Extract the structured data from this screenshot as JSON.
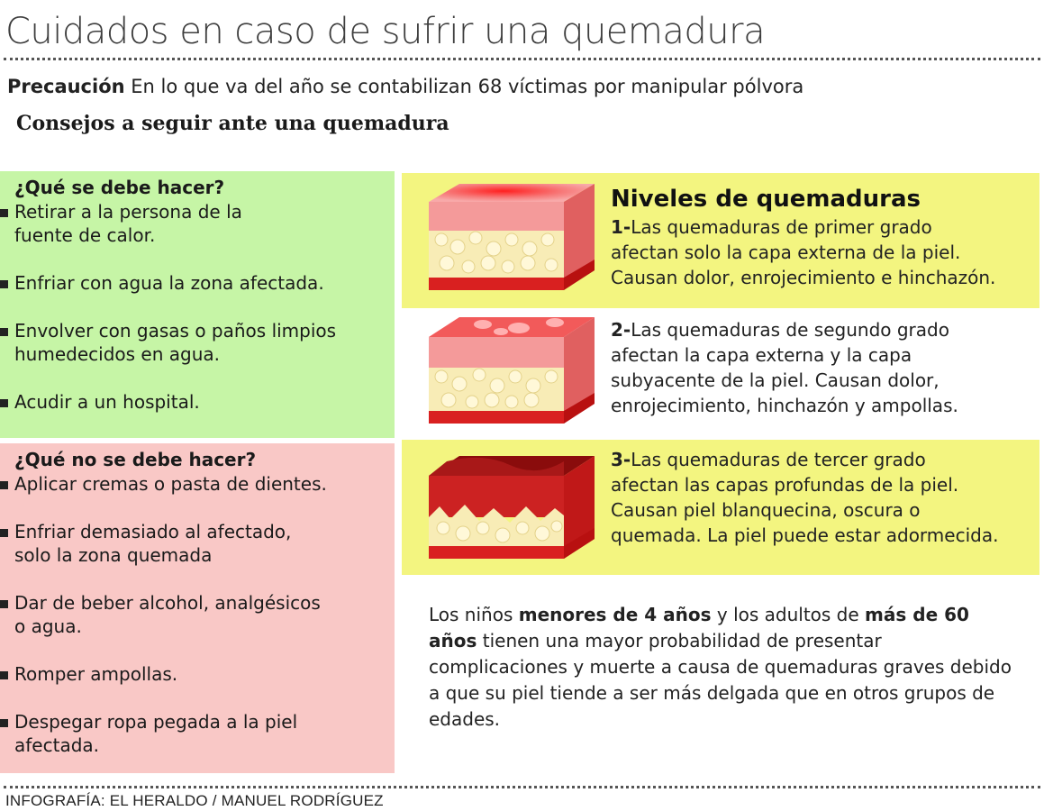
{
  "title": "Cuidados en caso de sufrir una quemadura",
  "precaution": {
    "label": "Precaución",
    "text": "En lo que va del año se contabilizan 68 víctimas por manipular pólvora"
  },
  "subtitle": "Consejos a seguir ante una quemadura",
  "do": {
    "heading": "¿Qué se debe hacer?",
    "items": [
      [
        "Retirar a la persona de la",
        "fuente de calor."
      ],
      [
        "Enfriar con agua la zona afectada."
      ],
      [
        "Envolver con gasas o paños limpios",
        "humedecidos en agua."
      ],
      [
        "Acudir a un hospital."
      ]
    ]
  },
  "dont": {
    "heading": "¿Qué no se debe hacer?",
    "items": [
      [
        "Aplicar cremas o pasta de dientes."
      ],
      [
        "Enfriar demasiado al afectado,",
        "solo la zona quemada"
      ],
      [
        "Dar de beber alcohol, analgésicos",
        "o agua."
      ],
      [
        "Romper ampollas."
      ],
      [
        "Despegar ropa pegada a la piel",
        "afectada."
      ]
    ]
  },
  "levels": {
    "title": "Niveles de quemaduras",
    "items": [
      {
        "number": "1-",
        "lines": [
          "Las  quemaduras de primer grado",
          "afectan solo la capa externa de la piel.",
          "Causan dolor, enrojecimiento e hinchazón."
        ]
      },
      {
        "number": "2-",
        "lines": [
          "Las quemaduras de segundo grado",
          "afectan la capa externa y la capa",
          "subyacente de la piel. Causan dolor,",
          "enrojecimiento, hinchazón y ampollas."
        ]
      },
      {
        "number": "3-",
        "lines": [
          "Las quemaduras de tercer grado",
          "afectan las capas profundas de la piel.",
          "Causan piel blanquecina, oscura o",
          "quemada. La piel puede estar adormecida."
        ]
      }
    ]
  },
  "note": {
    "part1": "Los niños ",
    "bold1": "menores de 4 años",
    "part2": " y los adultos de ",
    "bold2": "más de 60 años",
    "part3": " tienen una mayor probabilidad de presentar complicaciones y muerte a causa de quemaduras graves debido a que su piel tiende a ser más delgada que en otros grupos de edades."
  },
  "credit": "INFOGRAFÍA: EL HERALDO / MANUEL RODRÍGUEZ"
}
